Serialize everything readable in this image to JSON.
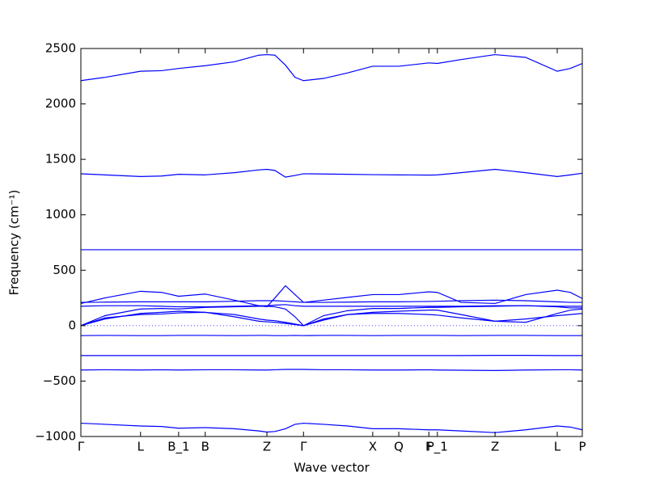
{
  "chart_data": {
    "type": "line",
    "xlabel": "Wave vector",
    "ylabel": "Frequency (cm⁻¹)",
    "color": "#0000ff",
    "zero_line": true,
    "x": [
      0,
      0.048,
      0.119,
      0.161,
      0.195,
      0.248,
      0.306,
      0.355,
      0.371,
      0.387,
      0.408,
      0.427,
      0.444,
      0.484,
      0.532,
      0.582,
      0.634,
      0.694,
      0.711,
      0.758,
      0.826,
      0.887,
      0.95,
      0.976,
      1.0
    ],
    "series": [
      {
        "values": [
          2210,
          2240,
          2295,
          2300,
          2320,
          2345,
          2380,
          2440,
          2445,
          2440,
          2350,
          2240,
          2210,
          2230,
          2280,
          2340,
          2340,
          2370,
          2365,
          2400,
          2445,
          2420,
          2295,
          2320,
          2365
        ]
      },
      {
        "values": [
          1370,
          1360,
          1345,
          1350,
          1365,
          1360,
          1380,
          1405,
          1410,
          1400,
          1340,
          1355,
          1370,
          1368,
          1365,
          1362,
          1360,
          1358,
          1360,
          1380,
          1410,
          1380,
          1345,
          1360,
          1375
        ]
      },
      {
        "values": [
          685,
          685,
          685,
          685,
          685,
          685,
          685,
          685,
          685,
          685,
          685,
          685,
          685,
          685,
          685,
          685,
          685,
          685,
          685,
          685,
          685,
          685,
          685,
          685,
          685
        ]
      },
      {
        "values": [
          200,
          250,
          310,
          300,
          265,
          285,
          230,
          180,
          170,
          250,
          360,
          280,
          210,
          230,
          255,
          280,
          280,
          305,
          300,
          210,
          200,
          280,
          320,
          300,
          245
        ]
      },
      {
        "values": [
          210,
          212,
          215,
          215,
          215,
          215,
          220,
          225,
          225,
          225,
          220,
          215,
          210,
          210,
          212,
          215,
          215,
          218,
          220,
          225,
          230,
          225,
          215,
          210,
          210
        ]
      },
      {
        "values": [
          175,
          180,
          180,
          175,
          170,
          170,
          175,
          180,
          180,
          185,
          190,
          180,
          175,
          175,
          175,
          175,
          175,
          175,
          175,
          175,
          180,
          180,
          175,
          175,
          175
        ]
      },
      {
        "values": [
          0,
          90,
          150,
          155,
          150,
          165,
          170,
          175,
          175,
          170,
          150,
          80,
          0,
          90,
          135,
          155,
          155,
          165,
          165,
          170,
          175,
          180,
          170,
          160,
          160
        ]
      },
      {
        "values": [
          0,
          70,
          100,
          105,
          115,
          120,
          100,
          60,
          50,
          45,
          30,
          15,
          0,
          60,
          100,
          120,
          130,
          140,
          140,
          100,
          40,
          30,
          110,
          140,
          150
        ]
      },
      {
        "values": [
          0,
          60,
          110,
          120,
          130,
          120,
          80,
          40,
          35,
          30,
          20,
          10,
          0,
          50,
          100,
          110,
          110,
          100,
          95,
          70,
          40,
          60,
          90,
          100,
          110
        ]
      },
      {
        "values": [
          -90,
          -88,
          -90,
          -90,
          -88,
          -88,
          -90,
          -88,
          -88,
          -90,
          -90,
          -88,
          -90,
          -88,
          -88,
          -90,
          -88,
          -88,
          -88,
          -90,
          -88,
          -88,
          -90,
          -90,
          -90
        ]
      },
      {
        "values": [
          -270,
          -270,
          -270,
          -270,
          -270,
          -270,
          -270,
          -270,
          -270,
          -270,
          -270,
          -270,
          -270,
          -270,
          -270,
          -270,
          -270,
          -270,
          -270,
          -270,
          -268,
          -268,
          -270,
          -270,
          -270
        ]
      },
      {
        "values": [
          -400,
          -398,
          -400,
          -398,
          -400,
          -398,
          -398,
          -400,
          -400,
          -398,
          -395,
          -395,
          -395,
          -398,
          -398,
          -400,
          -400,
          -398,
          -400,
          -402,
          -405,
          -400,
          -398,
          -398,
          -400
        ]
      },
      {
        "values": [
          -880,
          -890,
          -905,
          -910,
          -925,
          -920,
          -930,
          -950,
          -960,
          -955,
          -930,
          -890,
          -880,
          -890,
          -905,
          -930,
          -930,
          -940,
          -940,
          -950,
          -965,
          -940,
          -905,
          -915,
          -940
        ]
      }
    ],
    "xlim": [
      0,
      1.0
    ],
    "xticks": [
      {
        "value": 0,
        "label": "Γ"
      },
      {
        "value": 0.119,
        "label": "L"
      },
      {
        "value": 0.195,
        "label": "B_1"
      },
      {
        "value": 0.248,
        "label": "B"
      },
      {
        "value": 0.371,
        "label": "Z"
      },
      {
        "value": 0.444,
        "label": "Γ"
      },
      {
        "value": 0.582,
        "label": "X"
      },
      {
        "value": 0.634,
        "label": "Q"
      },
      {
        "value": 0.694,
        "label": "F"
      },
      {
        "value": 0.711,
        "label": "P_1"
      },
      {
        "value": 0.826,
        "label": "Z"
      },
      {
        "value": 0.95,
        "label": "L"
      },
      {
        "value": 1.0,
        "label": "P"
      }
    ],
    "ylim": [
      -1000,
      2500
    ],
    "yticks": [
      {
        "value": -1000,
        "label": "−1000"
      },
      {
        "value": -500,
        "label": "−500"
      },
      0,
      500,
      1000,
      1500,
      2000,
      2500
    ]
  }
}
